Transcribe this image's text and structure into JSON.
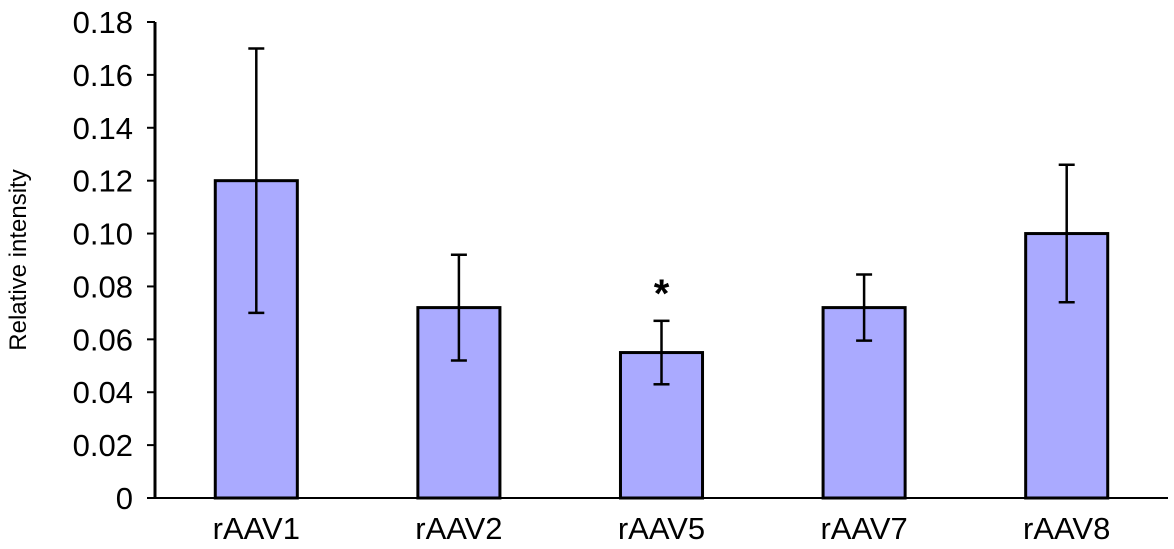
{
  "chart_data": {
    "type": "bar",
    "title": "",
    "xlabel": "",
    "ylabel": "Relative intensity",
    "categories": [
      "rAAV1",
      "rAAV2",
      "rAAV5",
      "rAAV7",
      "rAAV8"
    ],
    "values": [
      0.12,
      0.072,
      0.055,
      0.072,
      0.1
    ],
    "error": [
      0.05,
      0.02,
      0.012,
      0.0125,
      0.026
    ],
    "annotations": [
      {
        "category": "rAAV5",
        "text": "*"
      }
    ],
    "ylim": [
      0,
      0.18
    ],
    "yticks": [
      0,
      0.02,
      0.04,
      0.06,
      0.08,
      0.1,
      0.12,
      0.14,
      0.16,
      0.18
    ],
    "ytick_labels": [
      "0",
      "0.02",
      "0.04",
      "0.06",
      "0.08",
      "0.10",
      "0.12",
      "0.14",
      "0.16",
      "0.18"
    ],
    "grid": false,
    "legend": "none",
    "colors": {
      "bar_fill": "#aaaaff",
      "bar_stroke": "#000000"
    }
  }
}
